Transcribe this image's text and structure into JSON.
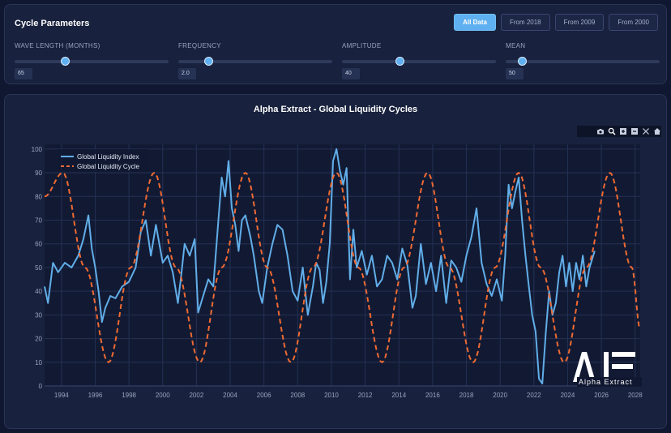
{
  "params": {
    "title": "Cycle Parameters",
    "range_buttons": [
      "All Data",
      "From 2018",
      "From 2009",
      "From 2000"
    ],
    "active_range": "All Data",
    "wave": {
      "label": "WAVE LENGTH (MONTHS)",
      "value": "65",
      "level": 0.33
    },
    "frequency": {
      "label": "FREQUENCY",
      "value": "2.0",
      "level": 0.2
    },
    "amplitude": {
      "label": "AMPLITUDE",
      "value": "40",
      "level": 0.38
    },
    "mean": {
      "label": "MEAN",
      "value": "50",
      "level": 0.11
    }
  },
  "chart": {
    "title": "Alpha Extract - Global Liquidity Cycles",
    "logo_text": "Alpha Extract",
    "logo_mark": "AE",
    "modebar_icons": [
      "camera-icon",
      "zoom-icon",
      "zoom-in-icon",
      "zoom-out-icon",
      "autoscale-icon",
      "home-icon"
    ]
  },
  "chart_data": {
    "type": "line",
    "title": "Alpha Extract - Global Liquidity Cycles",
    "xlabel": "",
    "ylabel": "",
    "xlim": [
      1993.0,
      2028.3
    ],
    "ylim": [
      0,
      102
    ],
    "x_ticks": [
      1994,
      1996,
      1998,
      2000,
      2002,
      2004,
      2006,
      2008,
      2010,
      2012,
      2014,
      2016,
      2018,
      2020,
      2022,
      2024,
      2026,
      2028
    ],
    "y_ticks": [
      0,
      10,
      20,
      30,
      40,
      50,
      60,
      70,
      80,
      90,
      100
    ],
    "grid": true,
    "legend": "top-left",
    "colors": {
      "index": "#61aee9",
      "cycle": "#f06a32"
    },
    "series": [
      {
        "name": "Global Liquidity Index",
        "style": "solid",
        "x": [
          1993.0,
          1993.2,
          1993.5,
          1993.8,
          1994.2,
          1994.6,
          1995.0,
          1995.3,
          1995.6,
          1995.8,
          1996.0,
          1996.2,
          1996.4,
          1996.6,
          1996.9,
          1997.2,
          1997.6,
          1998.0,
          1998.4,
          1998.7,
          1999.0,
          1999.3,
          1999.6,
          1999.8,
          2000.0,
          2000.3,
          2000.6,
          2000.9,
          2001.1,
          2001.3,
          2001.6,
          2001.9,
          2002.1,
          2002.4,
          2002.7,
          2003.0,
          2003.3,
          2003.5,
          2003.7,
          2003.9,
          2004.1,
          2004.3,
          2004.5,
          2004.7,
          2004.9,
          2005.2,
          2005.4,
          2005.7,
          2005.9,
          2006.2,
          2006.5,
          2006.8,
          2007.1,
          2007.4,
          2007.7,
          2008.0,
          2008.3,
          2008.6,
          2008.9,
          2009.1,
          2009.3,
          2009.5,
          2009.7,
          2009.9,
          2010.1,
          2010.3,
          2010.5,
          2010.7,
          2010.9,
          2011.1,
          2011.3,
          2011.5,
          2011.8,
          2012.1,
          2012.4,
          2012.7,
          2013.0,
          2013.3,
          2013.6,
          2013.9,
          2014.2,
          2014.5,
          2014.8,
          2015.0,
          2015.3,
          2015.6,
          2015.9,
          2016.2,
          2016.5,
          2016.8,
          2017.1,
          2017.4,
          2017.7,
          2018.0,
          2018.3,
          2018.6,
          2018.9,
          2019.2,
          2019.5,
          2019.8,
          2020.1,
          2020.3,
          2020.5,
          2020.7,
          2020.9,
          2021.1,
          2021.3,
          2021.5,
          2021.7,
          2021.9,
          2022.1,
          2022.3,
          2022.5,
          2022.7,
          2022.9,
          2023.1,
          2023.3,
          2023.5,
          2023.7,
          2023.9,
          2024.1,
          2024.3,
          2024.5,
          2024.7,
          2024.9,
          2025.1,
          2025.3,
          2025.6
        ],
        "y": [
          42,
          35,
          52,
          48,
          52,
          50,
          55,
          62,
          72,
          58,
          50,
          40,
          27,
          33,
          38,
          37,
          42,
          44,
          50,
          65,
          70,
          55,
          68,
          60,
          52,
          55,
          48,
          35,
          47,
          60,
          55,
          62,
          31,
          38,
          45,
          42,
          70,
          88,
          80,
          95,
          75,
          68,
          57,
          70,
          72,
          63,
          55,
          40,
          35,
          50,
          60,
          68,
          66,
          55,
          40,
          36,
          50,
          30,
          42,
          52,
          49,
          35,
          44,
          60,
          95,
          100,
          91,
          85,
          92,
          45,
          66,
          50,
          57,
          47,
          55,
          42,
          45,
          55,
          52,
          45,
          58,
          51,
          33,
          38,
          60,
          43,
          52,
          40,
          55,
          35,
          53,
          50,
          44,
          55,
          63,
          75,
          52,
          43,
          38,
          45,
          36,
          55,
          85,
          75,
          82,
          88,
          70,
          55,
          42,
          30,
          23,
          3,
          1,
          22,
          40,
          30,
          35,
          48,
          55,
          42,
          52,
          40,
          52,
          45,
          55,
          42,
          50,
          57
        ]
      },
      {
        "name": "Global Liquidity Cycle",
        "style": "dashed",
        "x": [
          1993.0,
          1994.08,
          1995.4,
          1996.79,
          1998.1,
          1999.5,
          2000.8,
          2002.2,
          2003.5,
          2004.9,
          2006.2,
          2007.6,
          2008.9,
          2010.3,
          2011.6,
          2013.0,
          2014.3,
          2015.7,
          2017.0,
          2018.4,
          2019.7,
          2021.1,
          2022.4,
          2023.8,
          2025.1,
          2026.5,
          2027.8,
          2028.3
        ],
        "y": [
          80,
          90,
          50,
          10,
          50,
          90,
          50,
          10,
          50,
          90,
          50,
          10,
          50,
          90,
          50,
          10,
          50,
          90,
          50,
          10,
          50,
          90,
          50,
          10,
          50,
          90,
          50,
          24
        ]
      }
    ]
  }
}
